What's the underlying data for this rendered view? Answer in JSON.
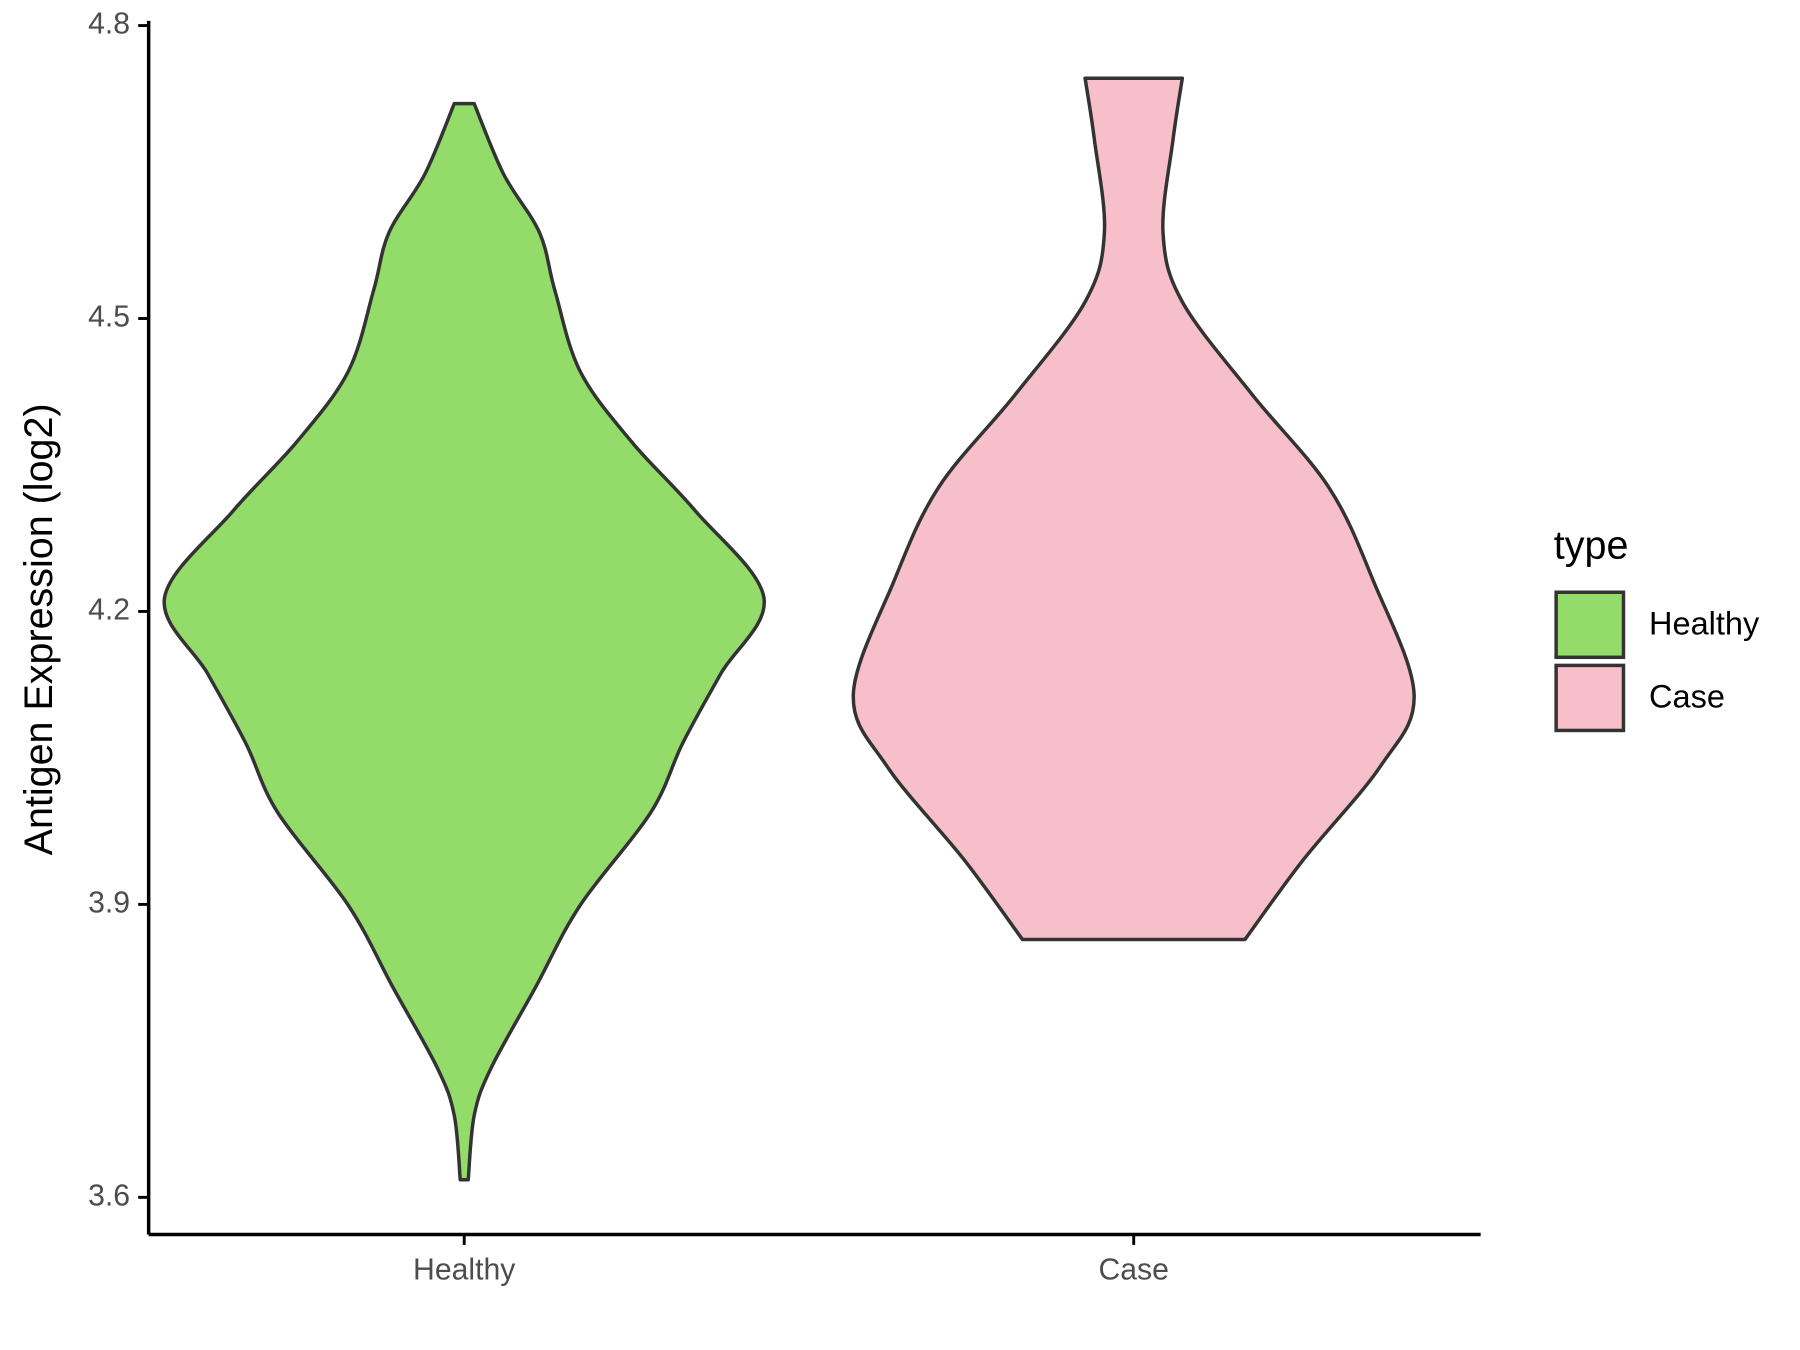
{
  "chart_data": {
    "type": "violin",
    "ylabel": "Antigen Expression (log2)",
    "categories": [
      "Healthy",
      "Case"
    ],
    "series": [
      {
        "name": "Healthy",
        "color": "#93dc6a",
        "y": [
          4.72,
          4.648,
          4.588,
          4.529,
          4.446,
          4.374,
          4.303,
          4.214,
          4.136,
          4.065,
          3.994,
          3.899,
          3.815,
          3.732,
          3.684,
          3.618
        ],
        "widths": [
          0.015,
          0.059,
          0.113,
          0.136,
          0.174,
          0.251,
          0.347,
          0.45,
          0.385,
          0.328,
          0.28,
          0.174,
          0.107,
          0.04,
          0.015,
          0.006
        ]
      },
      {
        "name": "Case",
        "color": "#f7bfca",
        "y": [
          4.746,
          4.683,
          4.588,
          4.517,
          4.422,
          4.327,
          4.231,
          4.115,
          4.041,
          3.946,
          3.864
        ],
        "widths": [
          0.073,
          0.059,
          0.044,
          0.073,
          0.178,
          0.293,
          0.36,
          0.421,
          0.37,
          0.255,
          0.167
        ]
      }
    ],
    "ylim": [
      3.562,
      4.8
    ],
    "yticks": [
      3.6,
      3.9,
      4.2,
      4.5,
      4.8
    ],
    "legend_title": "type",
    "legend": "right"
  }
}
